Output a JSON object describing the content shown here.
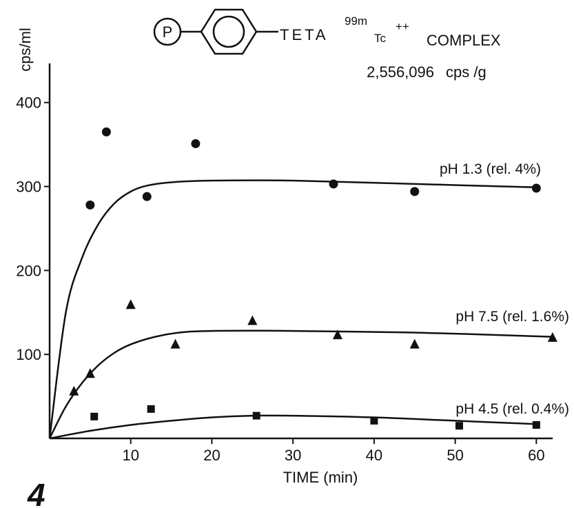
{
  "header": {
    "structure_letter": "P",
    "teta": "TETA",
    "isotope_sup": "99m",
    "tc": "Tc",
    "charge_sup": "++",
    "complex": "COMPLEX",
    "activity": "2,556,096",
    "activity_unit": "cps /g"
  },
  "figure_number_fragment": "4",
  "chart_data": {
    "type": "scatter",
    "xlabel": "TIME (min)",
    "ylabel": "cps/ml",
    "xlim": [
      0,
      62
    ],
    "ylim": [
      0,
      440
    ],
    "xticks": [
      10,
      20,
      30,
      40,
      50,
      60
    ],
    "xtick_labels": [
      "10",
      "20",
      "30",
      "40",
      "50",
      "60"
    ],
    "yticks": [
      100,
      200,
      300,
      400
    ],
    "ytick_labels": [
      "100",
      "200",
      "300",
      "400"
    ],
    "grid": false,
    "legend": "none",
    "series": [
      {
        "name": "pH 1.3 (rel. 4%)",
        "marker": "circle",
        "points": [
          [
            5,
            278
          ],
          [
            7,
            365
          ],
          [
            12,
            288
          ],
          [
            18,
            351
          ],
          [
            35,
            303
          ],
          [
            45,
            294
          ],
          [
            60,
            298
          ]
        ],
        "curve": [
          [
            0,
            0
          ],
          [
            2,
            150
          ],
          [
            4,
            215
          ],
          [
            6,
            255
          ],
          [
            8,
            280
          ],
          [
            10,
            294
          ],
          [
            12,
            301
          ],
          [
            15,
            305
          ],
          [
            20,
            307
          ],
          [
            30,
            307
          ],
          [
            45,
            303
          ],
          [
            60,
            299
          ]
        ]
      },
      {
        "name": "pH 7.5 (rel. 1.6%)",
        "marker": "triangle",
        "points": [
          [
            3,
            56
          ],
          [
            5,
            77
          ],
          [
            10,
            159
          ],
          [
            15.5,
            112
          ],
          [
            25,
            140
          ],
          [
            35.5,
            123
          ],
          [
            45,
            112
          ],
          [
            62,
            120
          ]
        ],
        "curve": [
          [
            0,
            0
          ],
          [
            2,
            38
          ],
          [
            4,
            66
          ],
          [
            6,
            87
          ],
          [
            8,
            102
          ],
          [
            10,
            112
          ],
          [
            13,
            121
          ],
          [
            16,
            126
          ],
          [
            20,
            128
          ],
          [
            30,
            128
          ],
          [
            45,
            126
          ],
          [
            62,
            121
          ]
        ]
      },
      {
        "name": "pH 4.5 (rel. 0.4%)",
        "marker": "square",
        "points": [
          [
            5.5,
            26
          ],
          [
            12.5,
            35
          ],
          [
            25.5,
            27
          ],
          [
            40,
            21
          ],
          [
            50.5,
            15
          ],
          [
            60,
            16
          ]
        ],
        "curve": [
          [
            0,
            0
          ],
          [
            5,
            9
          ],
          [
            10,
            16
          ],
          [
            15,
            21
          ],
          [
            20,
            25
          ],
          [
            25,
            27
          ],
          [
            30,
            27
          ],
          [
            40,
            25
          ],
          [
            50,
            21
          ],
          [
            60,
            17
          ]
        ]
      }
    ]
  }
}
